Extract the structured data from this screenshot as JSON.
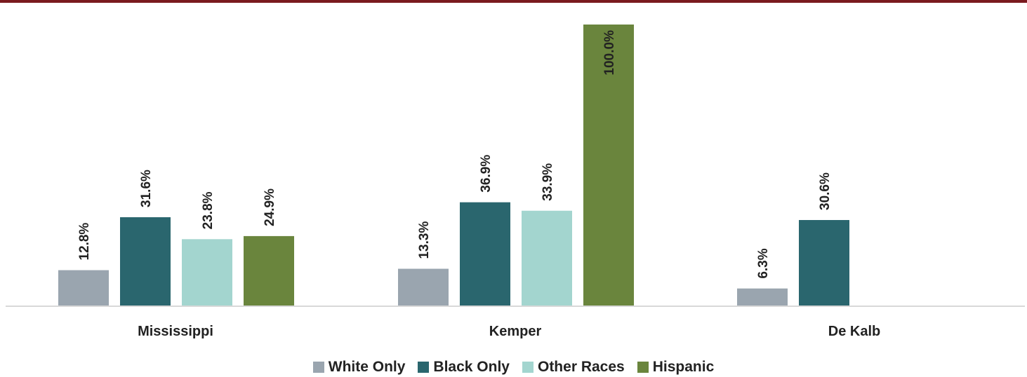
{
  "colors": {
    "top_rule": "#7a1a1f",
    "baseline": "#d9d9d9"
  },
  "chart_data": {
    "type": "bar",
    "categories": [
      "Mississippi",
      "Kemper",
      "De Kalb"
    ],
    "series": [
      {
        "name": "White Only",
        "color": "#9aa5af",
        "values": [
          12.8,
          13.3,
          6.3
        ],
        "labels": [
          "12.8%",
          "13.3%",
          "6.3%"
        ]
      },
      {
        "name": "Black Only",
        "color": "#2a666e",
        "values": [
          31.6,
          36.9,
          30.6
        ],
        "labels": [
          "31.6%",
          "36.9%",
          "30.6%"
        ]
      },
      {
        "name": "Other Races",
        "color": "#a3d5cf",
        "values": [
          23.8,
          33.9,
          null
        ],
        "labels": [
          "23.8%",
          "33.9%",
          ""
        ]
      },
      {
        "name": "Hispanic",
        "color": "#6a853d",
        "values": [
          24.9,
          100.0,
          null
        ],
        "labels": [
          "24.9%",
          "100.0%",
          ""
        ]
      }
    ],
    "ylim": [
      0,
      100
    ],
    "grid": false,
    "legend_position": "bottom"
  }
}
